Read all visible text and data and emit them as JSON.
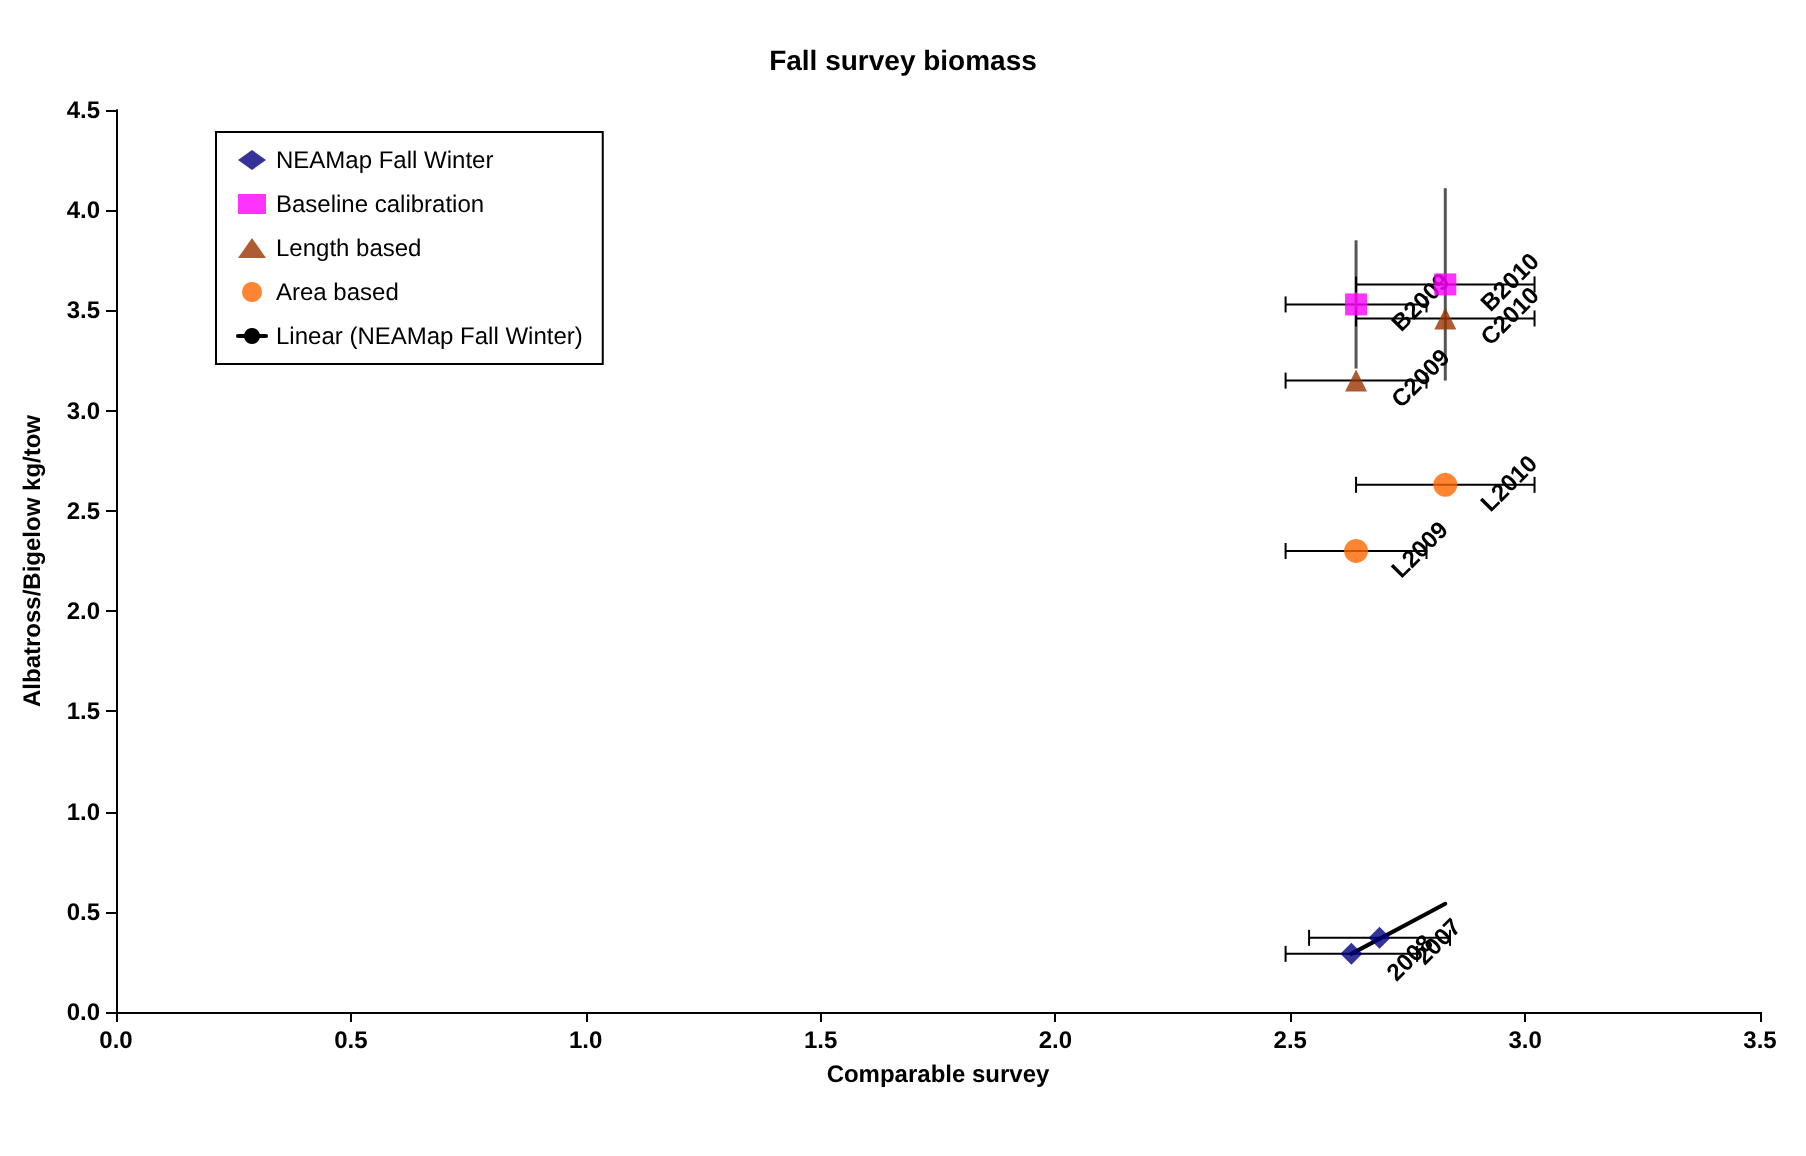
{
  "chart_data": {
    "type": "scatter",
    "title": "Fall survey biomass",
    "xlabel": "Comparable survey",
    "ylabel": "Albatross/Bigelow kg/tow",
    "xlim": [
      0,
      3.5
    ],
    "ylim": [
      0,
      4.5
    ],
    "xticks": [
      {
        "value": 0,
        "label": "0.0"
      },
      {
        "value": 0.5,
        "label": "0.5"
      },
      {
        "value": 1,
        "label": "1.0"
      },
      {
        "value": 1.5,
        "label": "1.5"
      },
      {
        "value": 2,
        "label": "2.0"
      },
      {
        "value": 2.5,
        "label": "2.5"
      },
      {
        "value": 3,
        "label": "3.0"
      },
      {
        "value": 3.5,
        "label": "3.5"
      }
    ],
    "yticks": [
      {
        "value": 0,
        "label": "0.0"
      },
      {
        "value": 0.5,
        "label": "0.5"
      },
      {
        "value": 1,
        "label": "1.0"
      },
      {
        "value": 1.5,
        "label": "1.5"
      },
      {
        "value": 2,
        "label": "2.0"
      },
      {
        "value": 2.5,
        "label": "2.5"
      },
      {
        "value": 3,
        "label": "3.0"
      },
      {
        "value": 3.5,
        "label": "3.5"
      },
      {
        "value": 4,
        "label": "4.0"
      },
      {
        "value": 4.5,
        "label": "4.5"
      }
    ],
    "grid": false,
    "legend": "top left",
    "series": [
      {
        "name": "NEAMap Fall Winter",
        "color": "#000080",
        "marker": "diamond",
        "x": [
          2.63,
          2.69
        ],
        "values": [
          0.29,
          0.37
        ],
        "xerrors": [
          0.14,
          0.15
        ]
      },
      {
        "name": "Baseline calibration",
        "color": "#ff00ff",
        "marker": "square",
        "x": [
          2.64,
          2.83
        ],
        "values": [
          3.53,
          3.63
        ],
        "xerrors": [
          0.15,
          0.19
        ],
        "errors": [
          0.32,
          0.48
        ]
      },
      {
        "name": "Length based",
        "color": "#993300",
        "marker": "triangle",
        "x": [
          2.64,
          2.83
        ],
        "values": [
          3.15,
          3.46
        ],
        "xerrors": [
          0.15,
          0.19
        ]
      },
      {
        "name": "Area based",
        "color": "#ff6600",
        "marker": "circle",
        "x": [
          2.64,
          2.83
        ],
        "values": [
          2.3,
          2.63
        ],
        "xerrors": [
          0.15,
          0.19
        ]
      },
      {
        "name": "Linear (NEAMap Fall Winter)",
        "type": "line",
        "color": "#000000",
        "marker": "none",
        "line_style": "solid",
        "x": [
          2.63,
          2.83
        ],
        "values": [
          0.29,
          0.54
        ]
      }
    ],
    "annotations": [
      {
        "text": "2008",
        "x": 2.63,
        "y": 0.29
      },
      {
        "text": "2007",
        "x": 2.69,
        "y": 0.37
      },
      {
        "text": "B2009",
        "x": 2.64,
        "y": 3.53
      },
      {
        "text": "B2010",
        "x": 2.83,
        "y": 3.63
      },
      {
        "text": "C2009",
        "x": 2.64,
        "y": 3.15
      },
      {
        "text": "C2010",
        "x": 2.83,
        "y": 3.46
      },
      {
        "text": "L2009",
        "x": 2.64,
        "y": 2.3
      },
      {
        "text": "L2010",
        "x": 2.83,
        "y": 2.63
      }
    ]
  }
}
